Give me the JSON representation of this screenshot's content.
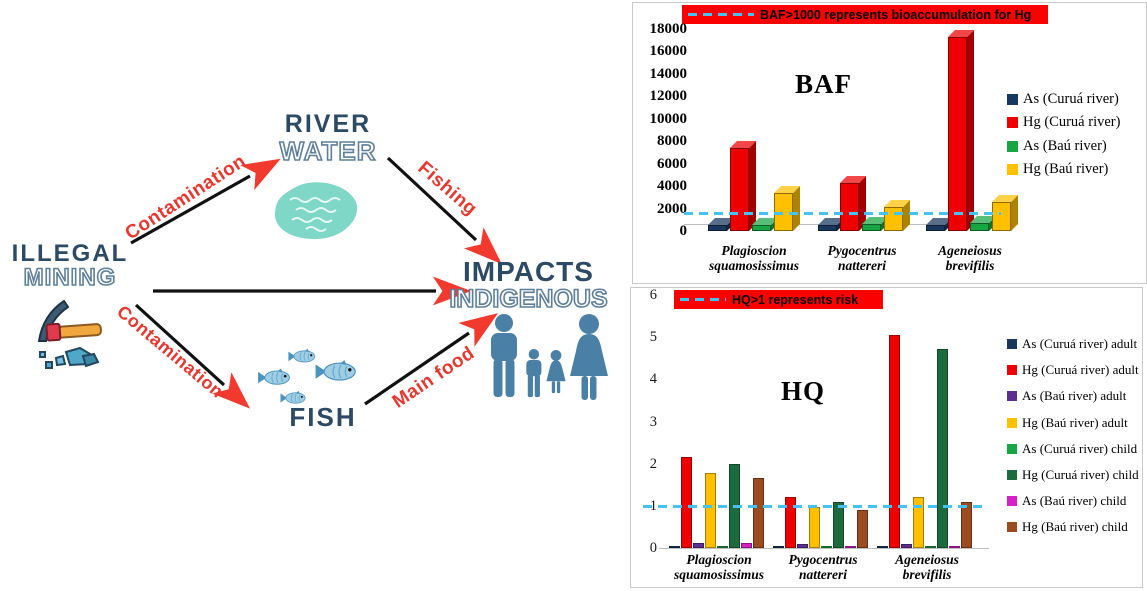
{
  "diagram": {
    "nodes": {
      "illegal": "ILLEGAL",
      "mining": "MINING",
      "river": "RIVER",
      "water": "WATER",
      "impacts": "IMPACTS",
      "indigenous": "INDIGENOUS",
      "fish": "FISH"
    },
    "edge_labels": {
      "contamination_top": "Contamination",
      "contamination_bottom": "Contamination",
      "fishing": "Fishing",
      "main_food": "Main food"
    },
    "colors": {
      "node_text": "#2C4A63",
      "node_outline": "#5E7F9A",
      "edge_label": "#E8372F",
      "arrow_line": "#111111",
      "arrow_head": "#F2392E",
      "family_icon": "#4A80A5",
      "water_blob": "#7FD7C8",
      "fish_body": "#9FCDE4",
      "pickaxe_handle": "#F0A73E",
      "rock_blue": "#4FA8C9"
    }
  },
  "chart_data": [
    {
      "type": "bar",
      "style": "3d",
      "title": "BAF",
      "banner": "BAF>1000 represents bioaccumulation for Hg",
      "threshold": 1000,
      "threshold_color": "#45C2F2",
      "banner_bg": "#FA0000",
      "categories": [
        "Plagioscion squamosissimus",
        "Pygocentrus nattereri",
        "Ageneiosus brevifilis"
      ],
      "series": [
        {
          "name": "As (Curuá river)",
          "color": "#17375E",
          "values": [
            500,
            500,
            500
          ]
        },
        {
          "name": "Hg (Curuá river)",
          "color": "#EE0000",
          "values": [
            7400,
            4300,
            17300
          ]
        },
        {
          "name": "As (Baú river)",
          "color": "#18A544",
          "values": [
            500,
            600,
            700
          ]
        },
        {
          "name": "Hg (Baú river)",
          "color": "#FFC000",
          "values": [
            3400,
            2100,
            2600
          ]
        }
      ],
      "ylim": [
        0,
        18000
      ],
      "yticks": [
        0,
        2000,
        4000,
        6000,
        8000,
        10000,
        12000,
        14000,
        16000,
        18000
      ],
      "legend_position": "right",
      "grid": false
    },
    {
      "type": "bar",
      "style": "flat",
      "title": "HQ",
      "banner": "HQ>1 represents risk",
      "threshold": 1,
      "threshold_color": "#45C2F2",
      "banner_bg": "#FA0000",
      "categories": [
        "Plagioscion squamosissimus",
        "Pygocentrus nattereri",
        "Ageneiosus brevifilis"
      ],
      "series": [
        {
          "name": "As (Curuá river) adult",
          "color": "#17375E",
          "values": [
            0.05,
            0.05,
            0.05
          ]
        },
        {
          "name": "Hg (Curuá river) adult",
          "color": "#EE0000",
          "values": [
            2.15,
            1.2,
            5.05
          ]
        },
        {
          "name": "As (Baú river) adult",
          "color": "#5C2E91",
          "values": [
            0.12,
            0.1,
            0.1
          ]
        },
        {
          "name": "Hg (Baú river) adult",
          "color": "#FFC000",
          "values": [
            1.77,
            0.98,
            1.2
          ]
        },
        {
          "name": "As (Curuá river) child",
          "color": "#18A544",
          "values": [
            0.05,
            0.05,
            0.04
          ]
        },
        {
          "name": "Hg (Curuá river) child",
          "color": "#1C6B3F",
          "values": [
            2.0,
            1.1,
            4.72
          ]
        },
        {
          "name": "As (Baú river) child",
          "color": "#D620C8",
          "values": [
            0.12,
            0.05,
            0.03
          ]
        },
        {
          "name": "Hg (Baú river) child",
          "color": "#9C4B20",
          "values": [
            1.65,
            0.9,
            1.1
          ]
        }
      ],
      "ylim": [
        0,
        6
      ],
      "yticks": [
        0,
        1,
        2,
        3,
        4,
        5,
        6
      ],
      "legend_position": "right",
      "grid": false
    }
  ]
}
